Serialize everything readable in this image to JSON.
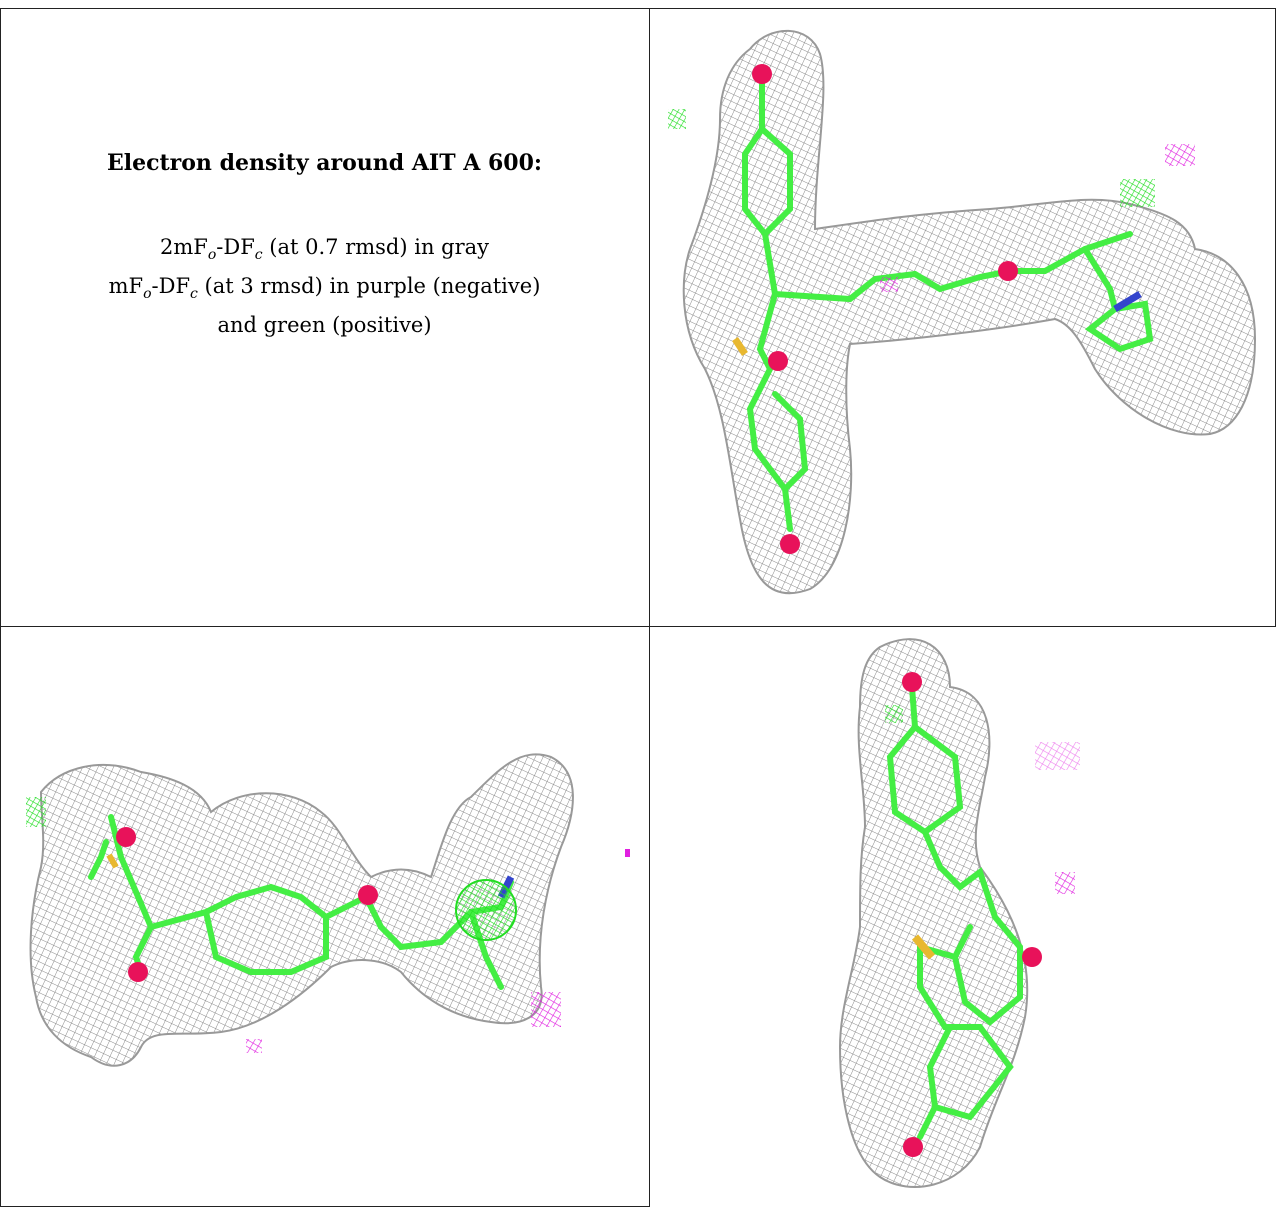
{
  "caption": {
    "title": "Electron density around AIT A 600:",
    "line1": {
      "prefix": "2mF",
      "sub1": "o",
      "mid": "-DF",
      "sub2": "c",
      "suffix": " (at 0.7 rmsd) in gray"
    },
    "line2": {
      "prefix": "mF",
      "sub1": "o",
      "mid": "-DF",
      "sub2": "c",
      "suffix": " (at 3 rmsd) in purple (negative)"
    },
    "line3": "and green (positive)"
  },
  "colors": {
    "density_2fofc": "#8a8a8a",
    "diff_negative": "#e020e0",
    "diff_positive": "#22dd22",
    "carbon": "#44ee44",
    "oxygen": "#e8125a",
    "nitrogen": "#3344cc",
    "sulfur": "#e8b830"
  }
}
